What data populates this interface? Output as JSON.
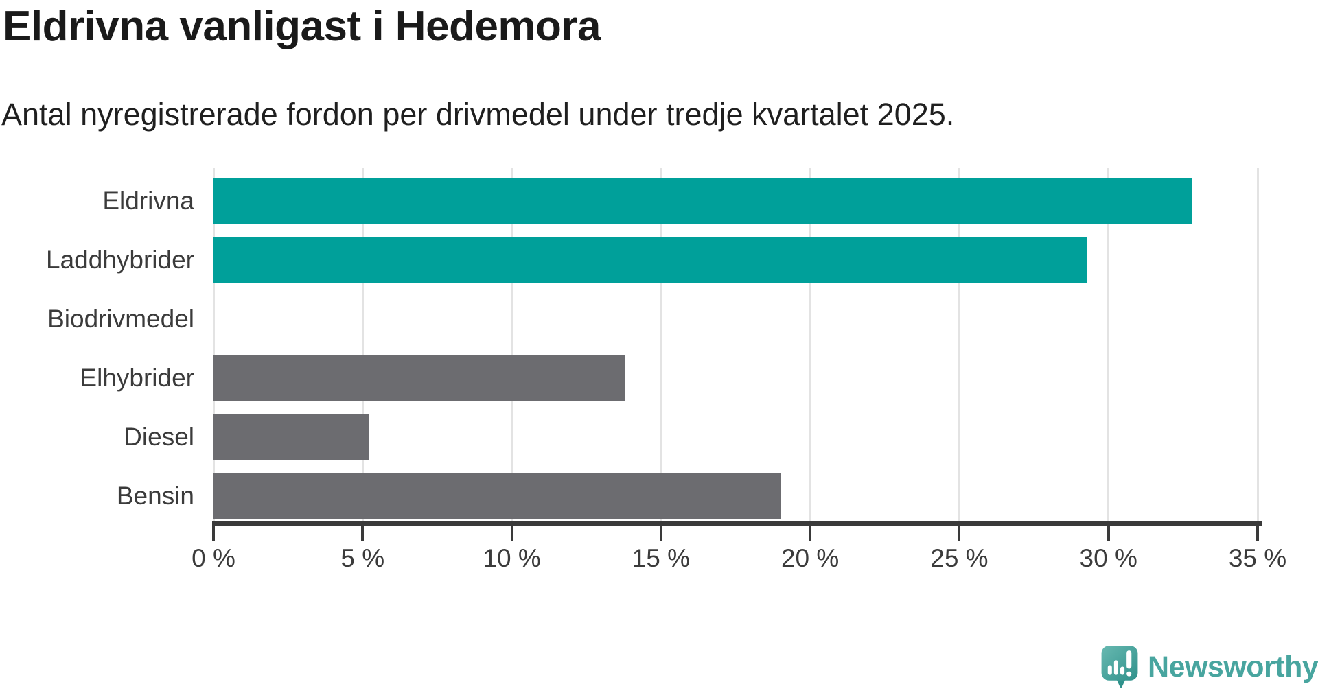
{
  "header": {
    "title": "Eldrivna vanligast i Hedemora",
    "subtitle": "Antal nyregistrerade fordon per drivmedel under tredje kvartalet 2025."
  },
  "chart_data": {
    "type": "bar",
    "orientation": "horizontal",
    "title": "Eldrivna vanligast i Hedemora",
    "subtitle": "Antal nyregistrerade fordon per drivmedel under tredje kvartalet 2025.",
    "categories": [
      "Eldrivna",
      "Laddhybrider",
      "Biodrivmedel",
      "Elhybrider",
      "Diesel",
      "Bensin"
    ],
    "values": [
      32.8,
      29.3,
      0,
      13.8,
      5.2,
      19.0
    ],
    "unit": "%",
    "xlim": [
      0,
      35
    ],
    "xticks": [
      0,
      5,
      10,
      15,
      20,
      25,
      30,
      35
    ],
    "xtick_labels": [
      "0 %",
      "5 %",
      "10 %",
      "15 %",
      "20 %",
      "25 %",
      "30 %",
      "35 %"
    ],
    "highlighted_categories": [
      "Eldrivna",
      "Laddhybrider"
    ],
    "bar_colors": [
      "#00A09A",
      "#00A09A",
      "#6C6C70",
      "#6C6C70",
      "#6C6C70",
      "#6C6C70"
    ],
    "colors": {
      "highlight": "#00A09A",
      "default": "#6C6C70",
      "grid": "#E3E3E3",
      "axis": "#3A3A3A",
      "text": "#3B3B3B",
      "title": "#1A1A1A"
    },
    "grid": true,
    "legend": null,
    "ylabel": "",
    "xlabel": ""
  },
  "footer": {
    "brand": "Newsworthy",
    "brand_color": "#48A59F",
    "logo_icon": "speech-bubble-bar-chart-exclamation",
    "logo_gradient": [
      "#68B9B1",
      "#2F918B"
    ]
  }
}
